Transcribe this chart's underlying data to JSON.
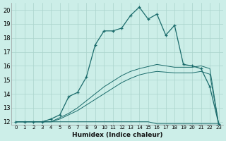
{
  "xlabel": "Humidex (Indice chaleur)",
  "bg_color": "#cceee8",
  "grid_color": "#aad4cc",
  "line_color": "#1a6b6b",
  "xlim": [
    -0.5,
    23.5
  ],
  "ylim": [
    11.8,
    20.5
  ],
  "xticks": [
    0,
    1,
    2,
    3,
    4,
    5,
    6,
    7,
    8,
    9,
    10,
    11,
    12,
    13,
    14,
    15,
    16,
    17,
    18,
    19,
    20,
    21,
    22,
    23
  ],
  "yticks": [
    12,
    13,
    14,
    15,
    16,
    17,
    18,
    19,
    20
  ],
  "main_x": [
    0,
    1,
    2,
    3,
    4,
    5,
    6,
    7,
    8,
    9,
    10,
    11,
    12,
    13,
    14,
    15,
    16,
    17,
    18,
    19,
    20,
    21,
    22,
    23
  ],
  "main_y": [
    12,
    12,
    12,
    12,
    12.2,
    12.5,
    13.8,
    14.1,
    15.2,
    17.5,
    18.5,
    18.5,
    18.7,
    19.6,
    20.2,
    19.35,
    19.7,
    18.2,
    18.9,
    16.1,
    16.0,
    15.8,
    14.5,
    11.85
  ],
  "flat_x": [
    0,
    1,
    2,
    3,
    4,
    5,
    6,
    7,
    8,
    9,
    10,
    11,
    12,
    13,
    14,
    15,
    16,
    17,
    18,
    19,
    20,
    21,
    22,
    23
  ],
  "flat_y": [
    12,
    12,
    12,
    12,
    12,
    12,
    12,
    12,
    12,
    12,
    12,
    12,
    12,
    12,
    12,
    12,
    11.85,
    11.85,
    11.85,
    11.85,
    11.85,
    11.85,
    11.85,
    11.85
  ],
  "upper_x": [
    0,
    1,
    2,
    3,
    4,
    5,
    6,
    7,
    8,
    9,
    10,
    11,
    12,
    13,
    14,
    15,
    16,
    17,
    18,
    19,
    20,
    21,
    22,
    23
  ],
  "upper_y": [
    12,
    12,
    12,
    12,
    12,
    12.3,
    12.6,
    13.0,
    13.5,
    14.0,
    14.5,
    14.9,
    15.3,
    15.6,
    15.8,
    15.95,
    16.1,
    16.0,
    15.9,
    15.9,
    15.9,
    16.0,
    15.8,
    11.85
  ],
  "lower_x": [
    0,
    1,
    2,
    3,
    4,
    5,
    6,
    7,
    8,
    9,
    10,
    11,
    12,
    13,
    14,
    15,
    16,
    17,
    18,
    19,
    20,
    21,
    22,
    23
  ],
  "lower_y": [
    12,
    12,
    12,
    12,
    12,
    12.2,
    12.5,
    12.8,
    13.2,
    13.6,
    14.0,
    14.4,
    14.8,
    15.1,
    15.35,
    15.5,
    15.6,
    15.55,
    15.5,
    15.5,
    15.5,
    15.6,
    15.4,
    11.85
  ]
}
